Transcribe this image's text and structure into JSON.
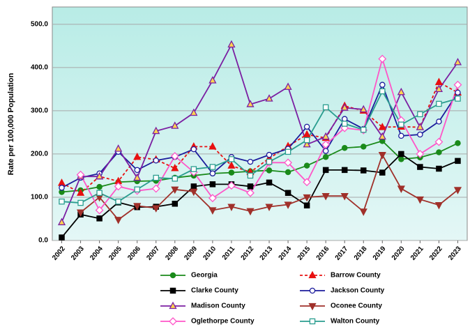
{
  "chart_data": {
    "type": "line",
    "y_label": "Rate per 100,000 Population",
    "categories": [
      "2002",
      "2003",
      "2004",
      "2005",
      "2006",
      "2007",
      "2008",
      "2009",
      "2010",
      "2011",
      "2012",
      "2013",
      "2014",
      "2015",
      "2016",
      "2017",
      "2018",
      "2019",
      "2020",
      "2021",
      "2022",
      "2023"
    ],
    "ylim": [
      0,
      540
    ],
    "yticks": [
      {
        "value": 0,
        "label": "0.0"
      },
      {
        "value": 100,
        "label": "100.0"
      },
      {
        "value": 200,
        "label": "200.0"
      },
      {
        "value": 300,
        "label": "300.0"
      },
      {
        "value": 400,
        "label": "400.0"
      },
      {
        "value": 500,
        "label": "500.0"
      }
    ],
    "grid": true,
    "legend": "bottom",
    "series": [
      {
        "name": "Georgia",
        "color": "#1a8a1a",
        "marker": "circle",
        "marker_fill": "#1a8a1a",
        "dashed": false,
        "values": [
          112,
          116,
          124,
          135,
          137,
          138,
          145,
          150,
          155,
          157,
          160,
          162,
          158,
          173,
          193,
          214,
          217,
          230,
          188,
          192,
          204,
          225
        ]
      },
      {
        "name": "Barrow County",
        "color": "#e81010",
        "marker": "triangle",
        "marker_fill": "#e81010",
        "dashed": true,
        "values": [
          133,
          110,
          148,
          137,
          193,
          187,
          167,
          217,
          217,
          173,
          158,
          190,
          218,
          245,
          237,
          311,
          300,
          262,
          263,
          262,
          366,
          342
        ]
      },
      {
        "name": "Clarke County",
        "color": "#000000",
        "marker": "square",
        "marker_fill": "#000000",
        "dashed": false,
        "values": [
          7,
          60,
          51,
          88,
          77,
          78,
          85,
          125,
          130,
          130,
          125,
          134,
          110,
          81,
          163,
          163,
          162,
          157,
          200,
          170,
          166,
          184
        ]
      },
      {
        "name": "Jackson County",
        "color": "#1c1c9c",
        "marker": "circle",
        "marker_fill": "#ffffff",
        "dashed": false,
        "values": [
          122,
          145,
          155,
          205,
          163,
          185,
          193,
          211,
          155,
          193,
          182,
          198,
          212,
          263,
          207,
          281,
          258,
          360,
          242,
          245,
          275,
          342
        ]
      },
      {
        "name": "Madison County",
        "color": "#7b1fa2",
        "marker": "triangle",
        "marker_fill": "#ffd54f",
        "dashed": false,
        "values": [
          42,
          148,
          148,
          212,
          145,
          253,
          265,
          295,
          370,
          453,
          315,
          328,
          355,
          222,
          240,
          307,
          303,
          240,
          343,
          262,
          350,
          412
        ]
      },
      {
        "name": "Oconee County",
        "color": "#a0302a",
        "marker": "down-triangle",
        "marker_fill": "#a0302a",
        "dashed": false,
        "values": [
          null,
          65,
          100,
          48,
          80,
          75,
          118,
          113,
          70,
          78,
          68,
          78,
          83,
          100,
          103,
          103,
          67,
          198,
          120,
          95,
          82,
          117
        ]
      },
      {
        "name": "Oglethorpe County",
        "color": "#ff55c8",
        "marker": "diamond",
        "marker_fill": "#ffffff",
        "dashed": false,
        "values": [
          null,
          152,
          70,
          125,
          115,
          120,
          195,
          158,
          98,
          127,
          110,
          180,
          180,
          135,
          222,
          260,
          255,
          420,
          278,
          200,
          228,
          360
        ]
      },
      {
        "name": "Walton County",
        "color": "#2a9d8f",
        "marker": "square",
        "marker_fill": "#ffffff",
        "dashed": false,
        "values": [
          90,
          87,
          110,
          90,
          118,
          145,
          143,
          165,
          170,
          188,
          150,
          182,
          205,
          232,
          308,
          270,
          256,
          345,
          268,
          292,
          316,
          328
        ]
      }
    ]
  }
}
